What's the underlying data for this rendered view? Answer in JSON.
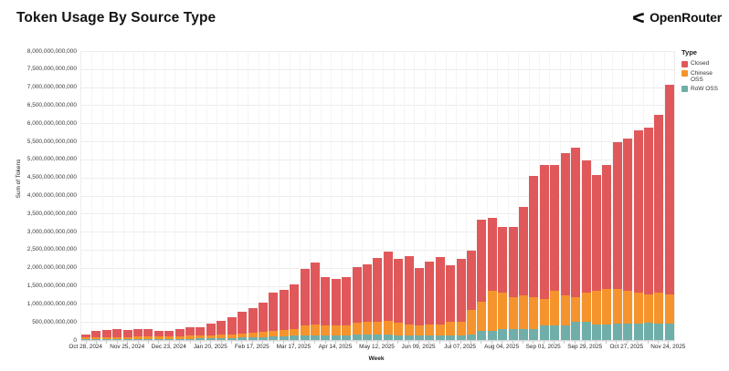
{
  "header": {
    "title": "Token Usage By Source Type",
    "brand": "OpenRouter"
  },
  "chart_data": {
    "type": "stacked_bar",
    "title": "Token Usage By Source Type",
    "xlabel": "Week",
    "ylabel": "Sum of Tokens",
    "legend_title": "Type",
    "legend_position": "right",
    "grid": true,
    "ylim": [
      0,
      8000000000000
    ],
    "ytick_step": 500000000000,
    "n_bars": 57,
    "x_tick_every": 4,
    "x_tick_labels": [
      "Oct 28, 2024",
      "Nov 25, 2024",
      "Dec 23, 2024",
      "Jan 20, 2025",
      "Feb 17, 2025",
      "Mar 17, 2025",
      "Apr 14, 2025",
      "May 12, 2025",
      "Jun 09, 2025",
      "Jul 07, 2025",
      "Aug 04, 2025",
      "Sep 01, 2025",
      "Sep 29, 2025",
      "Oct 27, 2025",
      "Nov 24, 2025"
    ],
    "value_unit": "billions of tokens",
    "stack_order_bottom_to_top": [
      "RoW OSS",
      "Chinese OSS",
      "Closed"
    ],
    "series": [
      {
        "name": "Closed",
        "color": "#E0585A",
        "values": [
          100,
          170,
          195,
          230,
          190,
          215,
          210,
          170,
          155,
          190,
          250,
          240,
          320,
          390,
          470,
          600,
          700,
          800,
          1050,
          1110,
          1230,
          1570,
          1730,
          1320,
          1280,
          1330,
          1550,
          1600,
          1760,
          1920,
          1760,
          1890,
          1570,
          1740,
          1880,
          1550,
          1740,
          1640,
          2270,
          2020,
          1810,
          1940,
          2450,
          3370,
          3700,
          3490,
          3950,
          4140,
          3660,
          3220,
          3420,
          4050,
          4200,
          4470,
          4600,
          4900,
          5780
        ]
      },
      {
        "name": "Chinese OSS",
        "color": "#F5942C",
        "values": [
          50,
          55,
          60,
          60,
          60,
          65,
          65,
          65,
          70,
          70,
          80,
          85,
          90,
          95,
          100,
          110,
          120,
          140,
          160,
          170,
          190,
          280,
          290,
          280,
          270,
          280,
          335,
          355,
          370,
          380,
          340,
          290,
          280,
          290,
          290,
          380,
          380,
          690,
          795,
          1090,
          1010,
          880,
          920,
          880,
          740,
          950,
          820,
          670,
          800,
          925,
          985,
          980,
          920,
          860,
          800,
          860,
          820
        ]
      },
      {
        "name": "RoW OSS",
        "color": "#70AEA9",
        "values": [
          40,
          45,
          45,
          50,
          50,
          50,
          55,
          55,
          55,
          60,
          60,
          65,
          70,
          75,
          80,
          90,
          100,
          110,
          120,
          130,
          140,
          150,
          160,
          160,
          160,
          160,
          165,
          165,
          170,
          170,
          160,
          160,
          160,
          160,
          160,
          160,
          160,
          180,
          285,
          290,
          330,
          330,
          330,
          330,
          430,
          430,
          430,
          540,
          540,
          455,
          455,
          470,
          480,
          490,
          500,
          490,
          480
        ]
      }
    ]
  }
}
